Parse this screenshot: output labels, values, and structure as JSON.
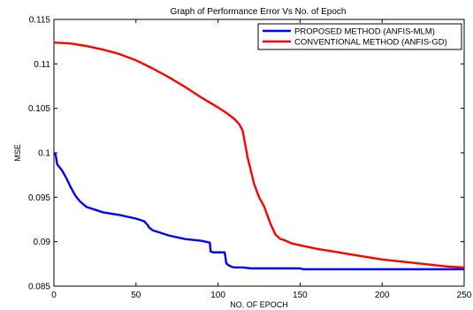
{
  "chart_data": {
    "type": "line",
    "title": "Graph of Performance Error Vs No. of Epoch",
    "xlabel": "NO. OF EPOCH",
    "ylabel": "MSE",
    "xlim": [
      0,
      250
    ],
    "ylim": [
      0.085,
      0.115
    ],
    "xticks": [
      "0",
      "50",
      "100",
      "150",
      "200",
      "250"
    ],
    "yticks": [
      "0.085",
      "0.09",
      "0.095",
      "0.1",
      "0.105",
      "0.11",
      "0.115"
    ],
    "grid": false,
    "legend_position": "top-right",
    "series": [
      {
        "name": "PROPOSED METHOD (ANFIS-MLM)",
        "color": "#0000ff",
        "x": [
          0,
          1,
          2,
          5,
          8,
          10,
          13,
          16,
          20,
          25,
          30,
          40,
          50,
          55,
          57,
          58,
          60,
          65,
          70,
          80,
          90,
          95,
          95.5,
          97,
          104,
          104.5,
          105,
          106,
          108,
          110,
          115,
          120,
          130,
          150,
          152,
          170,
          200,
          230,
          250
        ],
        "y": [
          0.1,
          0.0998,
          0.0987,
          0.098,
          0.097,
          0.0962,
          0.0952,
          0.0945,
          0.0939,
          0.0936,
          0.0933,
          0.093,
          0.0926,
          0.0923,
          0.0919,
          0.0916,
          0.0913,
          0.091,
          0.0907,
          0.0903,
          0.0901,
          0.0899,
          0.0889,
          0.0888,
          0.0888,
          0.0883,
          0.0876,
          0.0874,
          0.0872,
          0.0871,
          0.0871,
          0.087,
          0.087,
          0.087,
          0.0869,
          0.0869,
          0.0869,
          0.0869,
          0.0869
        ]
      },
      {
        "name": "CONVENTIONAL METHOD (ANFIS-GD)",
        "color": "#ff0000",
        "x": [
          0,
          10,
          20,
          30,
          40,
          50,
          60,
          70,
          80,
          90,
          100,
          105,
          110,
          113,
          115,
          117,
          118,
          120,
          122,
          125,
          128,
          130,
          132,
          135,
          138,
          140,
          145,
          150,
          160,
          170,
          180,
          190,
          200,
          210,
          220,
          230,
          240,
          250
        ],
        "y": [
          0.1124,
          0.1123,
          0.112,
          0.1116,
          0.1111,
          0.1104,
          0.1095,
          0.1085,
          0.1074,
          0.1062,
          0.1051,
          0.1045,
          0.1038,
          0.1032,
          0.1025,
          0.1005,
          0.0995,
          0.098,
          0.0965,
          0.095,
          0.094,
          0.093,
          0.092,
          0.0908,
          0.0903,
          0.0902,
          0.0898,
          0.0896,
          0.0892,
          0.0889,
          0.0886,
          0.0883,
          0.088,
          0.0878,
          0.0876,
          0.0874,
          0.0872,
          0.0871
        ]
      }
    ]
  }
}
